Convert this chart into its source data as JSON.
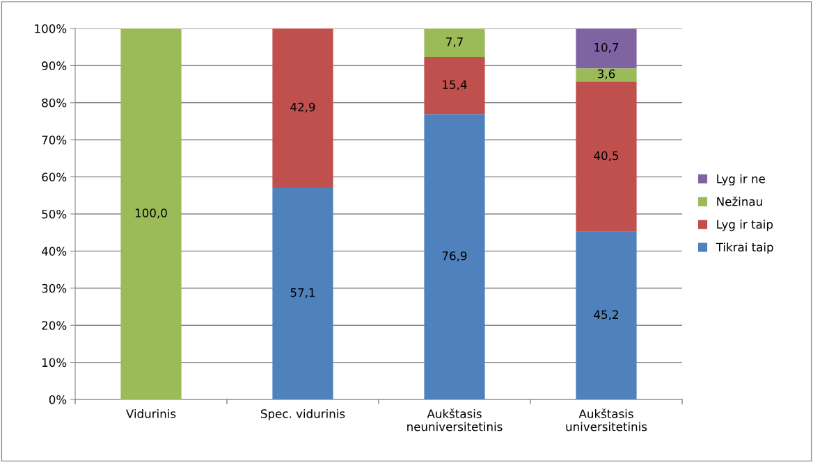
{
  "chart_data": {
    "type": "bar",
    "stacked": true,
    "categories": [
      "Vidurinis",
      "Spec. vidurinis",
      "Aukštasis\nneuniversitetinis",
      "Aukštasis\nuniversitetinis"
    ],
    "series": [
      {
        "name": "Tikrai taip",
        "color": "#4f81bd",
        "values": [
          0,
          57.1,
          76.9,
          45.2
        ],
        "value_labels": [
          null,
          "57,1",
          "76,9",
          "45,2"
        ]
      },
      {
        "name": "Lyg ir taip",
        "color": "#c0504d",
        "values": [
          0,
          42.9,
          15.4,
          40.5
        ],
        "value_labels": [
          null,
          "42,9",
          "15,4",
          "40,5"
        ]
      },
      {
        "name": "Nežinau",
        "color": "#9bbb59",
        "values": [
          100,
          0,
          7.7,
          3.6
        ],
        "value_labels": [
          "100,0",
          null,
          "7,7",
          "3,6"
        ]
      },
      {
        "name": "Lyg ir ne",
        "color": "#8064a2",
        "values": [
          0,
          0,
          0,
          10.7
        ],
        "value_labels": [
          null,
          null,
          null,
          "10,7"
        ]
      }
    ],
    "ylim": [
      0,
      100
    ],
    "yticks": [
      {
        "value": 0,
        "label": "0%"
      },
      {
        "value": 10,
        "label": "10%"
      },
      {
        "value": 20,
        "label": "20%"
      },
      {
        "value": 30,
        "label": "30%"
      },
      {
        "value": 40,
        "label": "40%"
      },
      {
        "value": 50,
        "label": "50%"
      },
      {
        "value": 60,
        "label": "60%"
      },
      {
        "value": 70,
        "label": "70%"
      },
      {
        "value": 80,
        "label": "80%"
      },
      {
        "value": 90,
        "label": "90%"
      },
      {
        "value": 100,
        "label": "100%"
      }
    ],
    "grid": "y",
    "legend": "right"
  }
}
